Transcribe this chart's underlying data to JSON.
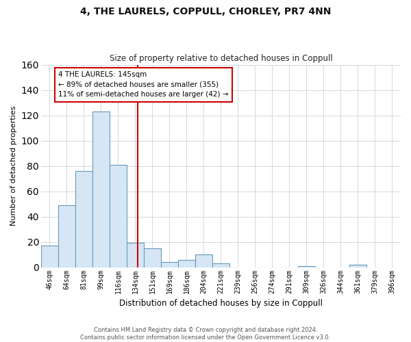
{
  "title": "4, THE LAURELS, COPPULL, CHORLEY, PR7 4NN",
  "subtitle": "Size of property relative to detached houses in Coppull",
  "xlabel": "Distribution of detached houses by size in Coppull",
  "ylabel": "Number of detached properties",
  "bin_labels": [
    "46sqm",
    "64sqm",
    "81sqm",
    "99sqm",
    "116sqm",
    "134sqm",
    "151sqm",
    "169sqm",
    "186sqm",
    "204sqm",
    "221sqm",
    "239sqm",
    "256sqm",
    "274sqm",
    "291sqm",
    "309sqm",
    "326sqm",
    "344sqm",
    "361sqm",
    "379sqm",
    "396sqm"
  ],
  "bar_values": [
    17,
    49,
    76,
    123,
    81,
    19,
    15,
    4,
    6,
    10,
    3,
    0,
    0,
    0,
    0,
    1,
    0,
    0,
    2,
    0,
    0
  ],
  "bar_color": "#d6e6f5",
  "bar_edge_color": "#6699bb",
  "ylim": [
    0,
    160
  ],
  "yticks": [
    0,
    20,
    40,
    60,
    80,
    100,
    120,
    140,
    160
  ],
  "annotation_line1": "4 THE LAURELS: 145sqm",
  "annotation_line2": "← 89% of detached houses are smaller (355)",
  "annotation_line3": "11% of semi-detached houses are larger (42) →",
  "annotation_box_color": "#ffffff",
  "annotation_box_edge_color": "#cc0000",
  "red_line_color": "#cc0000",
  "footer_text": "Contains HM Land Registry data © Crown copyright and database right 2024.\nContains public sector information licensed under the Open Government Licence v3.0.",
  "bg_color": "#ffffff",
  "plot_bg_color": "#ffffff",
  "grid_color": "#d0d8e0"
}
